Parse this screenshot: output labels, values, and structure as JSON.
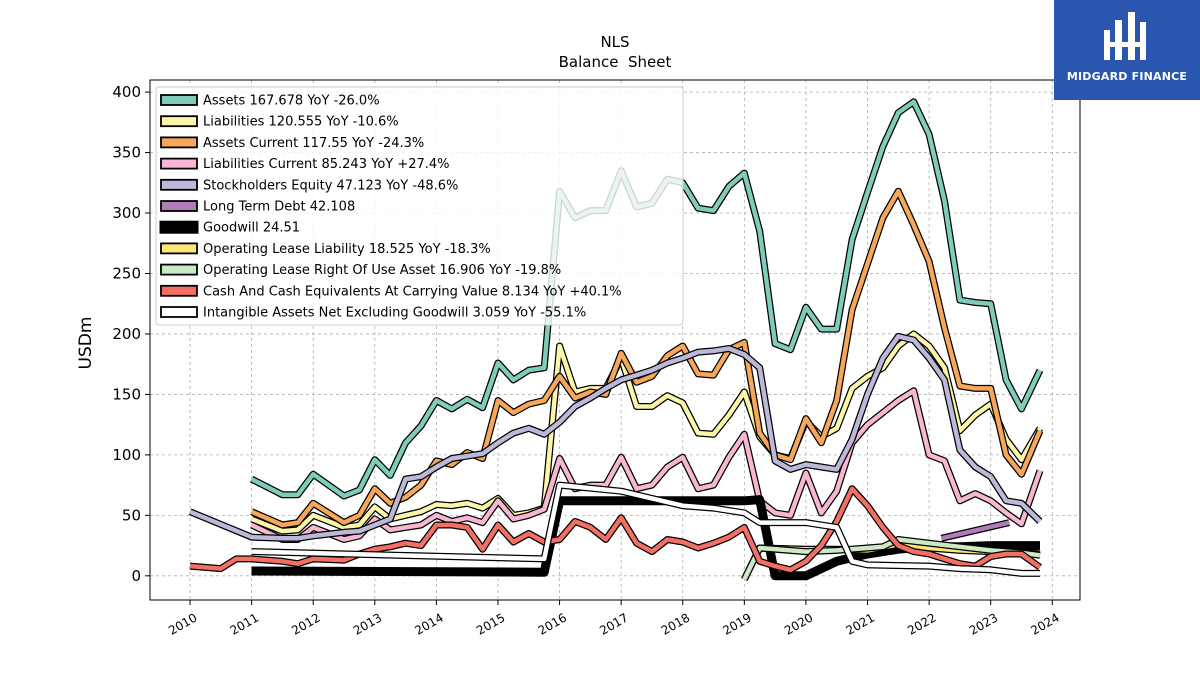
{
  "header": {
    "title": "NLS",
    "subtitle": "Balance  Sheet"
  },
  "logo": {
    "text": "MIDGARD FINANCE",
    "bg": "#2a56b0"
  },
  "chart_data": {
    "type": "line",
    "title": "NLS",
    "subtitle": "Balance  Sheet",
    "ylabel": "USDm",
    "xlabel": "",
    "ylim": [
      -20,
      410
    ],
    "xlim": [
      2009.35,
      2024.45
    ],
    "yticks": [
      0,
      50,
      100,
      150,
      200,
      250,
      300,
      350,
      400
    ],
    "xticks": [
      2010,
      2011,
      2012,
      2013,
      2014,
      2015,
      2016,
      2017,
      2018,
      2019,
      2020,
      2021,
      2022,
      2023,
      2024
    ],
    "grid": true,
    "legend_position": "top-left",
    "series": [
      {
        "name": "Assets",
        "legend": "Assets  167.678 YoY -26.0%",
        "color": "#7fccba",
        "x": [
          2011.0,
          2011.5,
          2011.75,
          2012.0,
          2012.5,
          2012.75,
          2013.0,
          2013.25,
          2013.5,
          2013.75,
          2014.0,
          2014.25,
          2014.5,
          2014.75,
          2015.0,
          2015.25,
          2015.5,
          2015.75,
          2016.0,
          2016.25,
          2016.5,
          2016.75,
          2017.0,
          2017.25,
          2017.5,
          2017.75,
          2018.0,
          2018.25,
          2018.5,
          2018.75,
          2019.0,
          2019.25,
          2019.5,
          2019.75,
          2020.0,
          2020.25,
          2020.5,
          2020.75,
          2021.0,
          2021.25,
          2021.5,
          2021.75,
          2022.0,
          2022.25,
          2022.5,
          2022.75,
          2023.0,
          2023.25,
          2023.5,
          2023.8
        ],
        "y": [
          80,
          67,
          67,
          84,
          66,
          71,
          96,
          83,
          110,
          124,
          145,
          138,
          146,
          139,
          176,
          162,
          170,
          172,
          318,
          296,
          302,
          302,
          335,
          305,
          308,
          328,
          325,
          304,
          302,
          322,
          333,
          285,
          192,
          187,
          222,
          204,
          204,
          278,
          317,
          355,
          383,
          392,
          365,
          310,
          228,
          226,
          225,
          162,
          138,
          170
        ]
      },
      {
        "name": "Liabilities",
        "legend": "Liabilities  120.555 YoY -10.6%",
        "color": "#fcf6a8",
        "x": [
          2011.0,
          2011.5,
          2011.75,
          2012.0,
          2012.5,
          2012.75,
          2013.0,
          2013.25,
          2013.5,
          2013.75,
          2014.0,
          2014.25,
          2014.5,
          2014.75,
          2015.0,
          2015.25,
          2015.5,
          2015.75,
          2016.0,
          2016.25,
          2016.5,
          2016.75,
          2017.0,
          2017.25,
          2017.5,
          2017.75,
          2018.0,
          2018.25,
          2018.5,
          2018.75,
          2019.0,
          2019.25,
          2019.5,
          2019.75,
          2020.0,
          2020.25,
          2020.5,
          2020.75,
          2021.0,
          2021.25,
          2021.5,
          2021.75,
          2022.0,
          2022.25,
          2022.5,
          2022.75,
          2023.0,
          2023.25,
          2023.5,
          2023.8
        ],
        "y": [
          47,
          37,
          38,
          50,
          40,
          42,
          57,
          47,
          50,
          53,
          59,
          58,
          60,
          56,
          64,
          50,
          52,
          56,
          190,
          152,
          155,
          155,
          180,
          140,
          140,
          149,
          143,
          118,
          117,
          133,
          152,
          115,
          100,
          97,
          128,
          115,
          122,
          155,
          165,
          172,
          190,
          200,
          190,
          172,
          120,
          133,
          142,
          113,
          96,
          122
        ]
      },
      {
        "name": "Assets Current",
        "legend": "Assets Current  117.55 YoY -24.3%",
        "color": "#f6a75a",
        "x": [
          2011.0,
          2011.5,
          2011.75,
          2012.0,
          2012.5,
          2012.75,
          2013.0,
          2013.25,
          2013.5,
          2013.75,
          2014.0,
          2014.25,
          2014.5,
          2014.75,
          2015.0,
          2015.25,
          2015.5,
          2015.75,
          2016.0,
          2016.25,
          2016.5,
          2016.75,
          2017.0,
          2017.25,
          2017.5,
          2017.75,
          2018.0,
          2018.25,
          2018.5,
          2018.75,
          2019.0,
          2019.25,
          2019.5,
          2019.75,
          2020.0,
          2020.25,
          2020.5,
          2020.75,
          2021.0,
          2021.25,
          2021.5,
          2021.75,
          2022.0,
          2022.25,
          2022.5,
          2022.75,
          2023.0,
          2023.25,
          2023.5,
          2023.8
        ],
        "y": [
          53,
          42,
          44,
          60,
          44,
          50,
          72,
          60,
          65,
          75,
          95,
          92,
          102,
          97,
          145,
          135,
          142,
          145,
          165,
          147,
          152,
          150,
          184,
          160,
          165,
          182,
          190,
          167,
          166,
          187,
          193,
          118,
          100,
          96,
          130,
          110,
          145,
          220,
          258,
          296,
          318,
          290,
          260,
          205,
          157,
          155,
          155,
          100,
          84,
          120
        ]
      },
      {
        "name": "Liabilities Current",
        "legend": "Liabilities Current  85.243 YoY +27.4%",
        "color": "#f7b6d2",
        "x": [
          2011.0,
          2011.5,
          2011.75,
          2012.0,
          2012.5,
          2012.75,
          2013.0,
          2013.25,
          2013.5,
          2013.75,
          2014.0,
          2014.25,
          2014.5,
          2014.75,
          2015.0,
          2015.25,
          2015.5,
          2015.75,
          2016.0,
          2016.25,
          2016.5,
          2016.75,
          2017.0,
          2017.25,
          2017.5,
          2017.75,
          2018.0,
          2018.25,
          2018.5,
          2018.75,
          2019.0,
          2019.25,
          2019.5,
          2019.75,
          2020.0,
          2020.25,
          2020.5,
          2020.75,
          2021.0,
          2021.25,
          2021.5,
          2021.75,
          2022.0,
          2022.25,
          2022.5,
          2022.75,
          2023.0,
          2023.25,
          2023.5,
          2023.8
        ],
        "y": [
          42,
          30,
          30,
          40,
          30,
          33,
          47,
          38,
          40,
          42,
          50,
          45,
          48,
          44,
          62,
          47,
          50,
          55,
          97,
          72,
          75,
          75,
          98,
          72,
          75,
          90,
          98,
          72,
          75,
          98,
          117,
          62,
          52,
          50,
          85,
          52,
          70,
          110,
          125,
          135,
          145,
          153,
          100,
          95,
          62,
          68,
          62,
          52,
          43,
          87
        ]
      },
      {
        "name": "Stockholders Equity",
        "legend": "Stockholders Equity  47.123 YoY -48.6%",
        "color": "#bcb8da",
        "x": [
          2010.0,
          2011.0,
          2011.5,
          2011.75,
          2012.0,
          2012.5,
          2012.75,
          2013.0,
          2013.25,
          2013.5,
          2013.75,
          2014.0,
          2014.25,
          2014.5,
          2014.75,
          2015.0,
          2015.25,
          2015.5,
          2015.75,
          2016.0,
          2016.25,
          2016.5,
          2016.75,
          2017.0,
          2017.25,
          2017.5,
          2017.75,
          2018.0,
          2018.25,
          2018.5,
          2018.75,
          2019.0,
          2019.25,
          2019.5,
          2019.75,
          2020.0,
          2020.25,
          2020.5,
          2020.75,
          2021.0,
          2021.25,
          2021.5,
          2021.75,
          2022.0,
          2022.25,
          2022.5,
          2022.75,
          2023.0,
          2023.25,
          2023.5,
          2023.8
        ],
        "y": [
          53,
          32,
          31,
          31,
          33,
          36,
          37,
          42,
          47,
          80,
          82,
          90,
          97,
          99,
          101,
          110,
          118,
          122,
          117,
          127,
          140,
          147,
          155,
          162,
          166,
          170,
          176,
          180,
          185,
          186,
          188,
          183,
          172,
          95,
          88,
          92,
          90,
          88,
          113,
          150,
          180,
          198,
          195,
          180,
          162,
          104,
          90,
          82,
          62,
          60,
          45
        ]
      },
      {
        "name": "Long Term Debt",
        "legend": "Long Term Debt  42.108",
        "color": "#b07cb8",
        "x": [
          2022.2,
          2023.3
        ],
        "y": [
          31,
          44
        ]
      },
      {
        "name": "Goodwill",
        "legend": "Goodwill  24.51",
        "color": "#000000",
        "x": [
          2011.0,
          2015.75,
          2016.0,
          2017.0,
          2018.0,
          2018.5,
          2019.0,
          2019.25,
          2019.5,
          2019.75,
          2020.0,
          2020.5,
          2021.0,
          2021.5,
          2022.0,
          2022.5,
          2023.0,
          2023.8
        ],
        "y": [
          4,
          3,
          62,
          62,
          62,
          62,
          62,
          63,
          0,
          0,
          0,
          12,
          18,
          22,
          24,
          24,
          25,
          25
        ]
      },
      {
        "name": "Operating Lease Liability",
        "legend": "Operating Lease Liability  18.525 YoY -18.3%",
        "color": "#fbe775",
        "x": [
          2019.0,
          2019.25,
          2020.0,
          2020.5,
          2021.0,
          2021.5,
          2022.0,
          2022.5,
          2023.0,
          2023.5,
          2023.8
        ],
        "y": [
          -3,
          23,
          22,
          22,
          21,
          26,
          23,
          21,
          20,
          19,
          18
        ]
      },
      {
        "name": "Operating Lease Right Of Use Asset",
        "legend": "Operating Lease Right Of Use Asset  16.906 YoY -19.8%",
        "color": "#cde8c5",
        "x": [
          2019.0,
          2019.25,
          2020.0,
          2020.5,
          2021.0,
          2021.25,
          2021.5,
          2022.0,
          2022.5,
          2023.0,
          2023.5,
          2023.8
        ],
        "y": [
          -3,
          23,
          20,
          21,
          23,
          24,
          30,
          27,
          24,
          21,
          19,
          17
        ]
      },
      {
        "name": "Cash And Cash Equivalents At Carrying Value",
        "legend": "Cash And Cash Equivalents At Carrying Value  8.134 YoY +40.1%",
        "color": "#f26f63",
        "x": [
          2010.0,
          2010.5,
          2010.75,
          2011.0,
          2011.5,
          2011.75,
          2012.0,
          2012.5,
          2012.75,
          2013.0,
          2013.25,
          2013.5,
          2013.75,
          2014.0,
          2014.25,
          2014.5,
          2014.75,
          2015.0,
          2015.25,
          2015.5,
          2015.75,
          2016.0,
          2016.25,
          2016.5,
          2016.75,
          2017.0,
          2017.25,
          2017.5,
          2017.75,
          2018.0,
          2018.25,
          2018.5,
          2018.75,
          2019.0,
          2019.25,
          2019.5,
          2019.75,
          2020.0,
          2020.25,
          2020.5,
          2020.75,
          2021.0,
          2021.25,
          2021.5,
          2021.75,
          2022.0,
          2022.25,
          2022.5,
          2022.75,
          2023.0,
          2023.25,
          2023.5,
          2023.8
        ],
        "y": [
          8,
          6,
          14,
          14,
          12,
          10,
          14,
          13,
          18,
          22,
          24,
          27,
          25,
          42,
          42,
          40,
          22,
          42,
          28,
          35,
          28,
          30,
          45,
          40,
          30,
          48,
          27,
          20,
          30,
          28,
          23,
          27,
          32,
          40,
          12,
          8,
          5,
          12,
          25,
          45,
          72,
          58,
          40,
          25,
          20,
          18,
          14,
          10,
          8,
          16,
          18,
          18,
          7
        ]
      },
      {
        "name": "Intangible Assets Net Excluding Goodwill",
        "legend": "Intangible Assets Net Excluding Goodwill  3.059 YoY -55.1%",
        "color": "#ffffff",
        "x": [
          2011.0,
          2015.75,
          2016.0,
          2017.0,
          2018.0,
          2018.5,
          2019.0,
          2019.25,
          2020.0,
          2020.5,
          2020.75,
          2021.0,
          2022.0,
          2022.5,
          2023.0,
          2023.5,
          2023.8
        ],
        "y": [
          20,
          14,
          75,
          70,
          58,
          56,
          52,
          44,
          44,
          40,
          12,
          9,
          8,
          6,
          5,
          2,
          2
        ]
      }
    ]
  }
}
